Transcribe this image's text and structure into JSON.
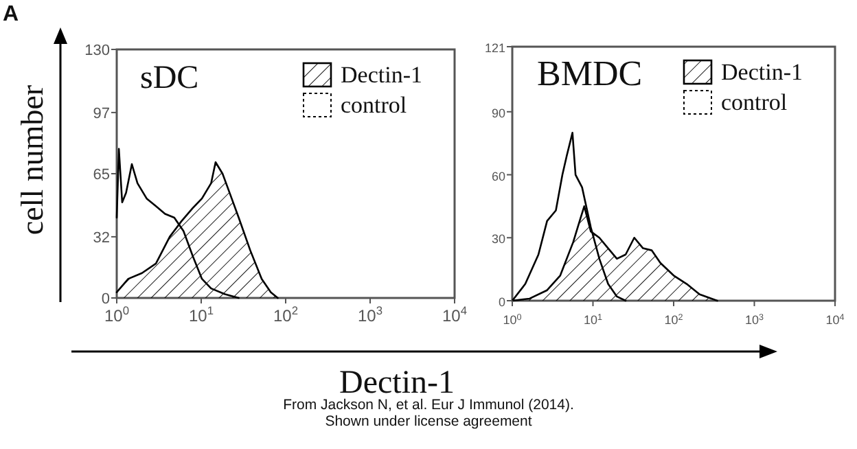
{
  "chart_data": [
    {
      "type": "area",
      "title": "sDC",
      "xlabel": "Dectin-1",
      "ylabel": "cell number",
      "annotations": [
        "A",
        "From Jackson N, et al. Eur J Immunol (2014).",
        "Shown under license agreement"
      ],
      "log": "x",
      "legend": "top right",
      "xlim": [
        1,
        10000
      ],
      "ylim": [
        0,
        130
      ],
      "xticks": [
        {
          "value": 1,
          "label": "10$^{0}$"
        },
        {
          "value": 10,
          "label": "10$^{1}$"
        },
        {
          "value": 100,
          "label": "10$^{2}$"
        },
        {
          "value": 1000,
          "label": "10$^{3}$"
        },
        {
          "value": 10000,
          "label": "10$^{4}$"
        }
      ],
      "yticks": [
        0,
        32,
        65,
        97,
        130
      ],
      "series": [
        {
          "name": "Dectin-1",
          "color": "#000000",
          "x": [
            1,
            1.37,
            1.99,
            2.91,
            4.24,
            5.8,
            7.93,
            10.2,
            13.1,
            14.8,
            17.9,
            21.7,
            27.8,
            38,
            52,
            66.7,
            80.6
          ],
          "values": [
            3,
            10,
            13,
            18,
            32,
            40,
            47,
            52,
            60,
            71,
            65,
            55,
            42,
            25,
            10,
            3,
            0
          ]
        },
        {
          "name": "control",
          "type": "line",
          "line_style": "solid",
          "color": "#000000",
          "x": [
            1,
            1.06,
            1.16,
            1.29,
            1.51,
            1.76,
            2.26,
            2.91,
            3.73,
            4.8,
            6.17,
            7.93,
            10.2,
            13.1,
            19.1,
            27.8
          ],
          "values": [
            42,
            78,
            50,
            55,
            70,
            60,
            52,
            48,
            44,
            42,
            35,
            22,
            10,
            5,
            2,
            0
          ]
        }
      ]
    },
    {
      "type": "area",
      "title": "BMDC",
      "log": "x",
      "legend": "top right",
      "xlim": [
        1,
        10000
      ],
      "ylim": [
        0,
        121
      ],
      "xticks": [
        {
          "value": 1,
          "label": "10$^{0}$"
        },
        {
          "value": 10,
          "label": "10$^{1}$"
        },
        {
          "value": 100,
          "label": "10$^{2}$"
        },
        {
          "value": 1000,
          "label": "10$^{3}$"
        },
        {
          "value": 10000,
          "label": "10$^{4}$"
        }
      ],
      "yticks": [
        0,
        30,
        60,
        90,
        121
      ],
      "series": [
        {
          "name": "Dectin-1",
          "color": "#000000",
          "x": [
            1,
            1.64,
            2.7,
            3.93,
            5.7,
            6.84,
            7.8,
            9.4,
            12,
            15.4,
            19.8,
            25.4,
            32.5,
            41.7,
            53.4,
            68.5,
            100,
            145,
            210,
            347
          ],
          "values": [
            0,
            1,
            5,
            12,
            28,
            38,
            45,
            33,
            30,
            25,
            20,
            22,
            30,
            25,
            24,
            18,
            12,
            8,
            3,
            0
          ]
        },
        {
          "name": "control",
          "type": "line",
          "line_style": "solid",
          "color": "#000000",
          "x": [
            1,
            1.45,
            2.11,
            2.7,
            3.47,
            4.18,
            4.73,
            5.57,
            6.08,
            7.33,
            9.4,
            12,
            15.4,
            19.8,
            25.4
          ],
          "values": [
            0,
            8,
            22,
            38,
            43,
            60,
            69,
            80,
            60,
            54,
            35,
            20,
            8,
            2,
            0
          ]
        }
      ]
    }
  ]
}
